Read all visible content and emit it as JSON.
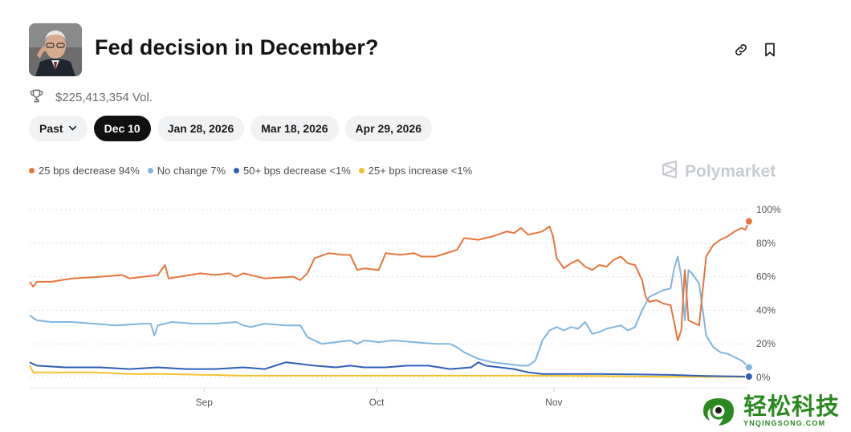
{
  "market": {
    "title": "Fed decision in December?",
    "volume": "$225,413,354 Vol."
  },
  "icons": {
    "link": "link-icon",
    "bookmark": "bookmark-icon",
    "trophy": "trophy-icon",
    "chevron": "chevron-down-icon"
  },
  "tabs": [
    {
      "label": "Past",
      "active": false
    },
    {
      "label": "Dec 10",
      "active": true
    },
    {
      "label": "Jan 28, 2026",
      "active": false
    },
    {
      "label": "Mar 18, 2026",
      "active": false
    },
    {
      "label": "Apr 29, 2026",
      "active": false
    }
  ],
  "brand": "Polymarket",
  "watermark": {
    "cn": "轻松科技",
    "en": "YNQINGSONG.COM"
  },
  "colors": {
    "orange": "#e8743b",
    "lightblue": "#7fb6df",
    "blue": "#2f5fb8",
    "yellow": "#f2c12e"
  },
  "chart_data": {
    "type": "line",
    "title": "",
    "xlabel": "",
    "ylabel": "",
    "ylim": [
      0,
      100
    ],
    "yticks": [
      0,
      20,
      40,
      60,
      80,
      100
    ],
    "ytick_labels": [
      "0%",
      "20%",
      "40%",
      "60%",
      "80%",
      "100%"
    ],
    "xlim": [
      0,
      100
    ],
    "xticks": [
      {
        "x": 24.5,
        "label": "Sep"
      },
      {
        "x": 48.7,
        "label": "Oct"
      },
      {
        "x": 73.6,
        "label": "Nov"
      }
    ],
    "series": [
      {
        "name": "25 bps decrease",
        "legend": "25 bps decrease 94%",
        "color": "#e8743b",
        "points": [
          [
            0,
            57
          ],
          [
            0.5,
            54
          ],
          [
            1,
            57
          ],
          [
            3,
            57
          ],
          [
            6,
            59
          ],
          [
            10,
            60
          ],
          [
            13,
            61
          ],
          [
            14,
            59
          ],
          [
            16,
            60
          ],
          [
            18,
            61
          ],
          [
            19,
            67
          ],
          [
            19.5,
            59
          ],
          [
            21,
            60
          ],
          [
            24,
            62
          ],
          [
            26,
            61
          ],
          [
            28,
            62
          ],
          [
            29,
            60
          ],
          [
            30,
            62
          ],
          [
            33,
            59
          ],
          [
            37,
            60
          ],
          [
            38,
            58
          ],
          [
            39,
            62
          ],
          [
            40,
            71
          ],
          [
            42,
            74
          ],
          [
            44,
            73
          ],
          [
            45,
            73
          ],
          [
            46,
            64
          ],
          [
            47,
            65
          ],
          [
            49,
            64
          ],
          [
            50,
            74
          ],
          [
            52,
            73
          ],
          [
            54,
            74
          ],
          [
            55,
            72
          ],
          [
            57,
            72
          ],
          [
            60,
            76
          ],
          [
            61,
            83
          ],
          [
            63,
            82
          ],
          [
            65,
            84
          ],
          [
            67,
            87
          ],
          [
            68,
            86
          ],
          [
            69,
            89
          ],
          [
            70,
            85
          ],
          [
            71,
            86
          ],
          [
            72,
            87
          ],
          [
            73,
            90
          ],
          [
            73.5,
            84
          ],
          [
            74,
            71
          ],
          [
            75,
            65
          ],
          [
            76,
            68
          ],
          [
            77,
            70
          ],
          [
            78,
            66
          ],
          [
            79,
            64
          ],
          [
            80,
            67
          ],
          [
            81,
            66
          ],
          [
            82,
            70
          ],
          [
            83,
            72
          ],
          [
            84,
            68
          ],
          [
            85,
            67
          ],
          [
            86,
            58
          ],
          [
            86.5,
            48
          ],
          [
            87,
            45
          ],
          [
            88,
            46
          ],
          [
            89,
            44
          ],
          [
            90,
            43
          ],
          [
            90.5,
            33
          ],
          [
            91,
            22
          ],
          [
            91.5,
            28
          ],
          [
            92,
            64
          ],
          [
            92.5,
            34
          ],
          [
            93,
            33
          ],
          [
            94,
            31
          ],
          [
            95,
            72
          ],
          [
            96,
            79
          ],
          [
            97,
            82
          ],
          [
            98,
            84
          ],
          [
            99,
            87
          ],
          [
            100,
            89
          ],
          [
            100.5,
            88
          ],
          [
            101,
            93
          ]
        ]
      },
      {
        "name": "No change",
        "legend": "No change 7%",
        "color": "#7fb6df",
        "points": [
          [
            0,
            37
          ],
          [
            1,
            34
          ],
          [
            3,
            33
          ],
          [
            6,
            33
          ],
          [
            9,
            32
          ],
          [
            12,
            31
          ],
          [
            16,
            32
          ],
          [
            17,
            32
          ],
          [
            17.5,
            25
          ],
          [
            18,
            31
          ],
          [
            20,
            33
          ],
          [
            23,
            32
          ],
          [
            26,
            32
          ],
          [
            29,
            33
          ],
          [
            30,
            31
          ],
          [
            31,
            30
          ],
          [
            33,
            32
          ],
          [
            36,
            31
          ],
          [
            38,
            31
          ],
          [
            39,
            24
          ],
          [
            41,
            20
          ],
          [
            43,
            21
          ],
          [
            45,
            22
          ],
          [
            46,
            20
          ],
          [
            47,
            22
          ],
          [
            49,
            21
          ],
          [
            51,
            22
          ],
          [
            54,
            21
          ],
          [
            57,
            20
          ],
          [
            59,
            20
          ],
          [
            60,
            18
          ],
          [
            61,
            15
          ],
          [
            63,
            11
          ],
          [
            65,
            9
          ],
          [
            67,
            8
          ],
          [
            69,
            7
          ],
          [
            70,
            7
          ],
          [
            71,
            10
          ],
          [
            72,
            22
          ],
          [
            73,
            28
          ],
          [
            74,
            30
          ],
          [
            75,
            28
          ],
          [
            76,
            30
          ],
          [
            77,
            29
          ],
          [
            78,
            33
          ],
          [
            79,
            26
          ],
          [
            80,
            27
          ],
          [
            81,
            29
          ],
          [
            82,
            30
          ],
          [
            83,
            31
          ],
          [
            84,
            28
          ],
          [
            85,
            30
          ],
          [
            86,
            40
          ],
          [
            87,
            48
          ],
          [
            88,
            50
          ],
          [
            89,
            52
          ],
          [
            90,
            53
          ],
          [
            90.5,
            65
          ],
          [
            91,
            72
          ],
          [
            91.5,
            60
          ],
          [
            92,
            34
          ],
          [
            92.5,
            64
          ],
          [
            93,
            62
          ],
          [
            94,
            56
          ],
          [
            95,
            25
          ],
          [
            96,
            18
          ],
          [
            97,
            15
          ],
          [
            98,
            14
          ],
          [
            99,
            12
          ],
          [
            100,
            10
          ],
          [
            101,
            6
          ]
        ]
      },
      {
        "name": "50+ bps decrease",
        "legend": "50+ bps decrease <1%",
        "color": "#2f5fb8",
        "points": [
          [
            0,
            9
          ],
          [
            1,
            7
          ],
          [
            5,
            6
          ],
          [
            10,
            6
          ],
          [
            14,
            5
          ],
          [
            18,
            6
          ],
          [
            22,
            5
          ],
          [
            26,
            5
          ],
          [
            30,
            6
          ],
          [
            33,
            5
          ],
          [
            36,
            9
          ],
          [
            38,
            8
          ],
          [
            40,
            7
          ],
          [
            43,
            6
          ],
          [
            45,
            7
          ],
          [
            47,
            6
          ],
          [
            50,
            6
          ],
          [
            53,
            7
          ],
          [
            56,
            7
          ],
          [
            59,
            5
          ],
          [
            62,
            6
          ],
          [
            63,
            9
          ],
          [
            64,
            7
          ],
          [
            66,
            6
          ],
          [
            68,
            5
          ],
          [
            70,
            3
          ],
          [
            72,
            2
          ],
          [
            75,
            2
          ],
          [
            80,
            2
          ],
          [
            85,
            1.8
          ],
          [
            90,
            1.5
          ],
          [
            95,
            0.8
          ],
          [
            101,
            0.5
          ]
        ]
      },
      {
        "name": "25+ bps increase",
        "legend": "25+ bps increase <1%",
        "color": "#f2c12e",
        "points": [
          [
            0,
            7
          ],
          [
            0.5,
            3
          ],
          [
            4,
            3
          ],
          [
            9,
            3
          ],
          [
            14,
            2
          ],
          [
            19,
            2
          ],
          [
            25,
            1.5
          ],
          [
            30,
            1
          ],
          [
            40,
            1
          ],
          [
            50,
            1
          ],
          [
            60,
            1
          ],
          [
            70,
            1
          ],
          [
            80,
            0.8
          ],
          [
            90,
            0.4
          ],
          [
            101,
            0.3
          ]
        ]
      }
    ]
  }
}
